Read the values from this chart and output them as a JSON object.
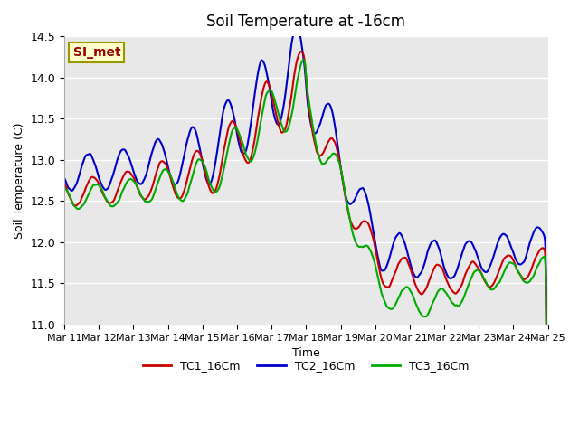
{
  "title": "Soil Temperature at -16cm",
  "xlabel": "Time",
  "ylabel": "Soil Temperature (C)",
  "ylim": [
    11.0,
    14.5
  ],
  "xlim": [
    0,
    336
  ],
  "background_color": "#ffffff",
  "plot_bg_color": "#e8e8e8",
  "grid_color": "#ffffff",
  "annotation_text": "SI_met",
  "annotation_bg": "#ffffcc",
  "annotation_border": "#999900",
  "annotation_text_color": "#990000",
  "xtick_labels": [
    "Mar 11",
    "Mar 12",
    "Mar 13",
    "Mar 14",
    "Mar 15",
    "Mar 16",
    "Mar 17",
    "Mar 18",
    "Mar 19",
    "Mar 20",
    "Mar 21",
    "Mar 22",
    "Mar 23",
    "Mar 24",
    "Mar 25"
  ],
  "xtick_positions": [
    0,
    24,
    48,
    72,
    96,
    120,
    144,
    168,
    192,
    216,
    240,
    264,
    288,
    312,
    336
  ],
  "ytick_labels": [
    "11.0",
    "11.5",
    "12.0",
    "12.5",
    "13.0",
    "13.5",
    "14.0",
    "14.5"
  ],
  "ytick_positions": [
    11.0,
    11.5,
    12.0,
    12.5,
    13.0,
    13.5,
    14.0,
    14.5
  ],
  "line_colors": [
    "#cc0000",
    "#0000cc",
    "#00aa00"
  ],
  "line_labels": [
    "TC1_16Cm",
    "TC2_16Cm",
    "TC3_16Cm"
  ],
  "line_width": 1.5,
  "figsize": [
    6.4,
    4.8
  ],
  "dpi": 100
}
